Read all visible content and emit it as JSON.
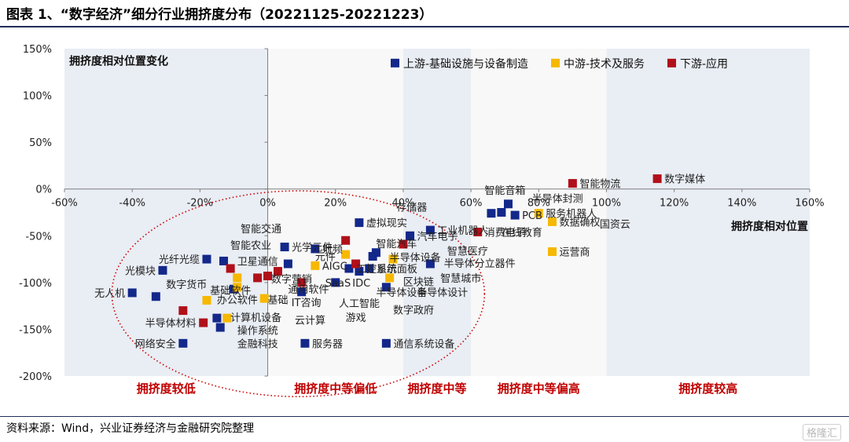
{
  "title": "图表 1、“数字经济”细分行业拥挤度分布（20221125-20221223）",
  "source": "资料来源：Wind，兴业证券经济与金融研究院整理",
  "watermark": "格隆汇",
  "colors": {
    "upstream": "#13288a",
    "midstream": "#f6b800",
    "downstream": "#b0101a",
    "band_blue": "#e9edf4",
    "band_white": "#f8f8f8",
    "zone_label": "#c00000",
    "ellipse": "#cc0000"
  },
  "chart_data": {
    "type": "scatter",
    "xlabel": "拥挤度相对位置",
    "ylabel": "拥挤度相对位置变化",
    "xlim": [
      -60,
      160
    ],
    "ylim": [
      -200,
      150
    ],
    "x_ticks": [
      "-60%",
      "-40%",
      "-20%",
      "0%",
      "20%",
      "40%",
      "60%",
      "80%",
      "100%",
      "120%",
      "140%",
      "160%"
    ],
    "x_tick_values": [
      -60,
      -40,
      -20,
      0,
      20,
      40,
      60,
      80,
      100,
      120,
      140,
      160
    ],
    "y_ticks": [
      "150%",
      "100%",
      "50%",
      "0%",
      "-50%",
      "-100%",
      "-150%",
      "-200%"
    ],
    "y_tick_values": [
      150,
      100,
      50,
      0,
      -50,
      -100,
      -150,
      -200
    ],
    "grid": false,
    "legend_position": "top-right",
    "bands": [
      {
        "x0": -60,
        "x1": 0,
        "fill": "blue",
        "label": "拥挤度较低"
      },
      {
        "x0": 0,
        "x1": 40,
        "fill": "white",
        "label": "拥挤度中等偏低"
      },
      {
        "x0": 40,
        "x1": 60,
        "fill": "blue",
        "label": "拥挤度中等"
      },
      {
        "x0": 60,
        "x1": 100,
        "fill": "white",
        "label": "拥挤度中等偏高"
      },
      {
        "x0": 100,
        "x1": 160,
        "fill": "blue",
        "label": "拥挤度较高"
      }
    ],
    "series": [
      {
        "name": "上游-基础设施与设备制造",
        "color_key": "upstream",
        "points": [
          {
            "label": "无人机",
            "x": -40,
            "y": -111
          },
          {
            "label": "光模块",
            "x": -31,
            "y": -87
          },
          {
            "label": "",
            "x": -33,
            "y": -115
          },
          {
            "label": "光纤光缆",
            "x": -18,
            "y": -75
          },
          {
            "label": "",
            "x": -13,
            "y": -77
          },
          {
            "label": "",
            "x": -15,
            "y": -138
          },
          {
            "label": "",
            "x": -14,
            "y": -148
          },
          {
            "label": "网络安全",
            "x": -25,
            "y": -165
          },
          {
            "label": "",
            "x": -10,
            "y": -107
          },
          {
            "label": "光学元件",
            "x": 5,
            "y": -62
          },
          {
            "label": "",
            "x": 6,
            "y": -80
          },
          {
            "label": "射频",
            "x": 14,
            "y": -64
          },
          {
            "label": "",
            "x": 10,
            "y": -110
          },
          {
            "label": "服务器",
            "x": 11,
            "y": -165
          },
          {
            "label": "虚拟现实",
            "x": 27,
            "y": -36
          },
          {
            "label": "工控系统",
            "x": 24,
            "y": -85
          },
          {
            "label": "",
            "x": 20,
            "y": -100
          },
          {
            "label": "",
            "x": 27,
            "y": -88
          },
          {
            "label": "",
            "x": 31,
            "y": -72
          },
          {
            "label": "",
            "x": 32,
            "y": -68
          },
          {
            "label": "显示面板",
            "x": 30,
            "y": -85
          },
          {
            "label": "",
            "x": 35,
            "y": -105
          },
          {
            "label": "工业机器人",
            "x": 48,
            "y": -44
          },
          {
            "label": "汽车电子",
            "x": 42,
            "y": -50
          },
          {
            "label": "",
            "x": 48,
            "y": -80
          },
          {
            "label": "通信系统设备",
            "x": 35,
            "y": -165
          },
          {
            "label": "",
            "x": 66,
            "y": -26
          },
          {
            "label": "",
            "x": 69,
            "y": -25
          },
          {
            "label": "",
            "x": 71,
            "y": -16
          },
          {
            "label": "PCB",
            "x": 73,
            "y": -28
          }
        ]
      },
      {
        "name": "中游-技术及服务",
        "color_key": "midstream",
        "points": [
          {
            "label": "",
            "x": -18,
            "y": -119
          },
          {
            "label": "",
            "x": -9,
            "y": -95
          },
          {
            "label": "",
            "x": -9,
            "y": -105
          },
          {
            "label": "",
            "x": -12,
            "y": -138
          },
          {
            "label": "",
            "x": -1,
            "y": -117
          },
          {
            "label": "AIGC",
            "x": 14,
            "y": -82
          },
          {
            "label": "",
            "x": 23,
            "y": -70
          },
          {
            "label": "",
            "x": 36,
            "y": -95
          },
          {
            "label": "",
            "x": 37,
            "y": -75
          },
          {
            "label": "服务机器人",
            "x": 80,
            "y": -26
          },
          {
            "label": "数据确权",
            "x": 84,
            "y": -35
          },
          {
            "label": "运营商",
            "x": 84,
            "y": -67
          }
        ]
      },
      {
        "name": "下游-应用",
        "color_key": "downstream",
        "points": [
          {
            "label": "",
            "x": -25,
            "y": -130
          },
          {
            "label": "半导体材料",
            "x": -19,
            "y": -143
          },
          {
            "label": "",
            "x": -11,
            "y": -85
          },
          {
            "label": "",
            "x": -3,
            "y": -95
          },
          {
            "label": "",
            "x": 0,
            "y": -93
          },
          {
            "label": "",
            "x": 3,
            "y": -88
          },
          {
            "label": "",
            "x": 10,
            "y": -100
          },
          {
            "label": "",
            "x": 23,
            "y": -55
          },
          {
            "label": "",
            "x": 26,
            "y": -80
          },
          {
            "label": "",
            "x": 40,
            "y": -59
          },
          {
            "label": "消费电子",
            "x": 62,
            "y": -46
          },
          {
            "label": "智能物流",
            "x": 90,
            "y": 6
          },
          {
            "label": "数字媒体",
            "x": 115,
            "y": 11
          }
        ]
      }
    ],
    "annotations": [
      {
        "text": "智能交通",
        "x": -8,
        "y": -42
      },
      {
        "text": "智能农业",
        "x": -11,
        "y": -60
      },
      {
        "text": "卫星通信",
        "x": -9,
        "y": -77
      },
      {
        "text": "数字货币",
        "x": -30,
        "y": -102
      },
      {
        "text": "基础软件",
        "x": -17,
        "y": -108
      },
      {
        "text": "办公软件",
        "x": -15,
        "y": -118
      },
      {
        "text": "计算机设备",
        "x": -11,
        "y": -137
      },
      {
        "text": "操作系统",
        "x": -9,
        "y": -151
      },
      {
        "text": "金融科技",
        "x": -9,
        "y": -165
      },
      {
        "text": "数字营销",
        "x": 1,
        "y": -96
      },
      {
        "text": "通用软件",
        "x": 6,
        "y": -107
      },
      {
        "text": "基础",
        "x": 0,
        "y": -118
      },
      {
        "text": "IT咨询",
        "x": 7,
        "y": -121
      },
      {
        "text": "云计算",
        "x": 8,
        "y": -140
      },
      {
        "text": "元件",
        "x": 14,
        "y": -72
      },
      {
        "text": "SaaS",
        "x": 17,
        "y": -100
      },
      {
        "text": "IDC",
        "x": 25,
        "y": -100
      },
      {
        "text": "人工智能",
        "x": 21,
        "y": -122
      },
      {
        "text": "游戏",
        "x": 23,
        "y": -137
      },
      {
        "text": "半导体设备",
        "x": 32,
        "y": -110
      },
      {
        "text": "智能汽车",
        "x": 32,
        "y": -58
      },
      {
        "text": "存储器",
        "x": 38,
        "y": -19
      },
      {
        "text": "半导体设备",
        "x": 36,
        "y": -73
      },
      {
        "text": "区块链",
        "x": 40,
        "y": -99
      },
      {
        "text": "半导体设计",
        "x": 44,
        "y": -110
      },
      {
        "text": "数字政府",
        "x": 37,
        "y": -129
      },
      {
        "text": "智慧医疗",
        "x": 53,
        "y": -66
      },
      {
        "text": "半导体分立器件",
        "x": 52,
        "y": -79
      },
      {
        "text": "智慧城市",
        "x": 51,
        "y": -95
      },
      {
        "text": "智能音箱",
        "x": 64,
        "y": -1
      },
      {
        "text": "半导体封测",
        "x": 78,
        "y": -10
      },
      {
        "text": "在线教育",
        "x": 69,
        "y": -46
      },
      {
        "text": "国资云",
        "x": 98,
        "y": -37
      }
    ],
    "ellipse": {
      "cx": 9,
      "cy": -112,
      "rx": 55,
      "ry": 110
    }
  }
}
